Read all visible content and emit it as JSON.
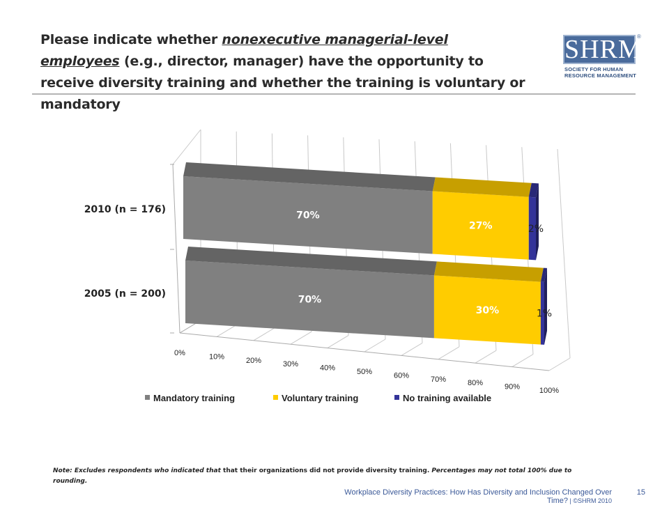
{
  "header": {
    "title_part1": "Please indicate whether ",
    "title_emph": "nonexecutive managerial-level employees",
    "title_part2": " (e.g., director, manager) have the opportunity to receive diversity training and whether the training is voluntary or mandatory"
  },
  "logo": {
    "mark": "SHRM",
    "registered": "®",
    "line1": "SOCIETY FOR HUMAN",
    "line2": "RESOURCE MANAGEMENT"
  },
  "chart_data": {
    "type": "bar",
    "orientation": "horizontal",
    "stacked": true,
    "style": "3d",
    "categories": [
      "2010 (n = 176)",
      "2005 (n = 200)"
    ],
    "series": [
      {
        "name": "Mandatory training",
        "values": [
          70,
          70
        ],
        "labels": [
          "70%",
          "70%"
        ],
        "color": "#808080"
      },
      {
        "name": "Voluntary training",
        "values": [
          27,
          30
        ],
        "labels": [
          "27%",
          "30%"
        ],
        "color": "#ffcc00"
      },
      {
        "name": "No training available",
        "values": [
          2,
          1
        ],
        "labels": [
          "2%",
          "1%"
        ],
        "color": "#333399"
      }
    ],
    "xlim": [
      0,
      100
    ],
    "xticks": [
      "0%",
      "10%",
      "20%",
      "30%",
      "40%",
      "50%",
      "60%",
      "70%",
      "80%",
      "90%",
      "100%"
    ],
    "grid": true,
    "legend_position": "bottom"
  },
  "note": {
    "lead": "Note: Excludes respondents who indicated that ",
    "middle": "that their organizations did not provide diversity training.",
    "tail": " Percentages may not total 100% due to rounding."
  },
  "footer": {
    "text": "Workplace Diversity Practices: How Has Diversity and Inclusion Changed Over Time?",
    "copyright": " | ©SHRM 2010",
    "page": "15"
  }
}
